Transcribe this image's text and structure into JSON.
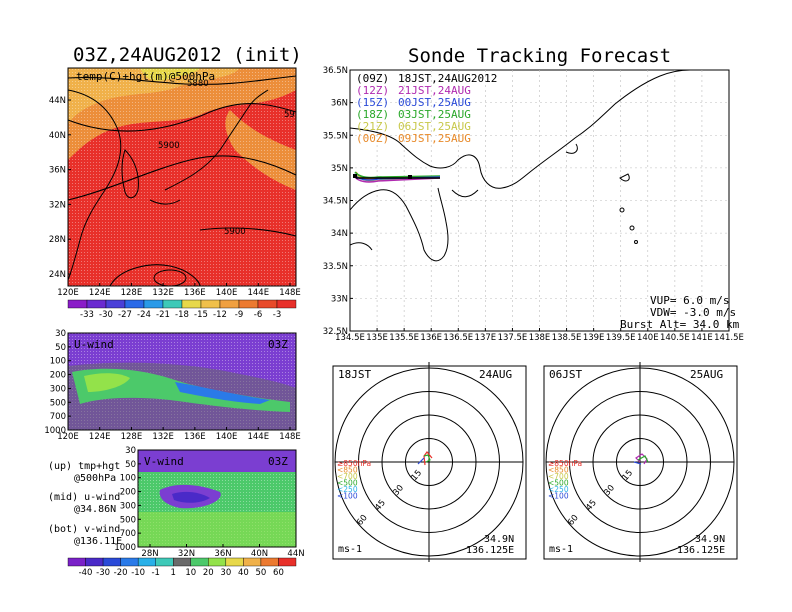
{
  "colors": {
    "warm": [
      "#e7d84a",
      "#f0b14a",
      "#ec8e3a",
      "#e85a2a",
      "#e8302a"
    ],
    "cold": [
      "#7a21c8",
      "#4a2ac8",
      "#2a4ad8",
      "#2a7ae8",
      "#29b0e8",
      "#3ec9b8"
    ],
    "wind_u": "#7b3ed1",
    "wind_mid": "#4cc96a",
    "wind_hi": "#93e24a",
    "track_12": "#b02ab0",
    "track_15": "#2a4ad8",
    "track_18": "#2aa82a",
    "track_21": "#c8c84a",
    "track_00": "#e88a2a"
  },
  "left_panel": {
    "title": "03Z,24AUG2012 (init)",
    "map_label": "temp(C)+hgt(m)@500hPa",
    "contour_labels": [
      "5880",
      "5900",
      "5900",
      "59"
    ],
    "lat_ticks": [
      "44N",
      "40N",
      "36N",
      "32N",
      "28N",
      "24N"
    ],
    "lon_ticks": [
      "120E",
      "124E",
      "128E",
      "132E",
      "136E",
      "140E",
      "144E",
      "148E"
    ],
    "temp_colorbar": [
      "-33",
      "-30",
      "-27",
      "-24",
      "-21",
      "-18",
      "-15",
      "-12",
      "-9",
      "-6",
      "-3"
    ]
  },
  "u_panel": {
    "label": "U-wind",
    "time": "03Z",
    "p_ticks": [
      "30",
      "50",
      "100",
      "200",
      "300",
      "500",
      "700",
      "1000"
    ],
    "lon_ticks": [
      "120E",
      "124E",
      "128E",
      "132E",
      "136E",
      "140E",
      "144E",
      "148E"
    ]
  },
  "v_panel": {
    "label": "V-wind",
    "time": "03Z",
    "p_ticks": [
      "30",
      "50",
      "100",
      "200",
      "300",
      "500",
      "700",
      "1000"
    ],
    "lat_ticks": [
      "28N",
      "32N",
      "36N",
      "40N",
      "44N"
    ],
    "wind_colorbar": [
      "-40",
      "-30",
      "-20",
      "-10",
      "-1",
      "1",
      "10",
      "20",
      "30",
      "40",
      "50",
      "60"
    ]
  },
  "notes": {
    "up": "(up)  tmp+hgt",
    "up2": "@500hPa",
    "mid": "(mid) u-wind",
    "mid2": "@34.86N",
    "bot": "(bot) v-wind",
    "bot2": "@136.11E"
  },
  "main": {
    "title": "Sonde Tracking Forecast",
    "lat_ticks": [
      "36.5N",
      "36N",
      "35.5N",
      "35N",
      "34.5N",
      "34N",
      "33.5N",
      "33N",
      "32.5N"
    ],
    "lon_ticks": [
      "134.5E",
      "135E",
      "135.5E",
      "136E",
      "136.5E",
      "137E",
      "137.5E",
      "138E",
      "138.5E",
      "139E",
      "139.5E",
      "140E",
      "140.5E",
      "141E",
      "141.5E"
    ],
    "legend": [
      {
        "utc": "(09Z)",
        "jst": "18JST,24AUG2012",
        "color": "#000000"
      },
      {
        "utc": "(12Z)",
        "jst": "21JST,24AUG",
        "color": "#b02ab0"
      },
      {
        "utc": "(15Z)",
        "jst": "00JST,25AUG",
        "color": "#2a4ad8"
      },
      {
        "utc": "(18Z)",
        "jst": "03JST,25AUG",
        "color": "#2aa82a"
      },
      {
        "utc": "(21Z)",
        "jst": "06JST,25AUG",
        "color": "#c8c84a"
      },
      {
        "utc": "(00Z)",
        "jst": "09JST,25AUG",
        "color": "#e88a2a"
      }
    ],
    "vup": "VUP= 6.0 m/s",
    "vdw": "VDW= -3.0 m/s",
    "burst": "Burst Alt= 34.0 km"
  },
  "hodo_left": {
    "time": "18JST",
    "date": "24AUG",
    "rings": [
      "15",
      "30",
      "45",
      "60"
    ],
    "levels": [
      "≥850hPa",
      "<850",
      "<700",
      "<500",
      "<250",
      "<100"
    ],
    "units": "ms-1",
    "lat": "34.9N",
    "lon": "136.125E"
  },
  "hodo_right": {
    "time": "06JST",
    "date": "25AUG",
    "rings": [
      "15",
      "30",
      "45",
      "60"
    ],
    "levels": [
      "≥850hPa",
      "<850",
      "<700",
      "<500",
      "<250",
      "<100"
    ],
    "units": "ms-1",
    "lat": "34.9N",
    "lon": "136.125E"
  }
}
